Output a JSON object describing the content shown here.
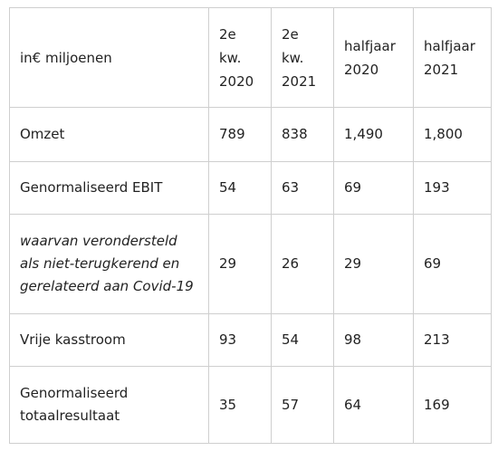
{
  "table": {
    "header": {
      "label": "in€ miljoenen",
      "columns": [
        [
          "2e",
          "kw.",
          "2020"
        ],
        [
          "2e",
          "kw.",
          "2021"
        ],
        [
          "halfjaar",
          "2020"
        ],
        [
          "halfjaar",
          "2021"
        ]
      ]
    },
    "rows": [
      {
        "label_lines": [
          "Omzet"
        ],
        "italic": false,
        "values": [
          "789",
          "838",
          "1,490",
          "1,800"
        ]
      },
      {
        "label_lines": [
          "Genormaliseerd EBIT"
        ],
        "italic": false,
        "values": [
          "54",
          "63",
          "69",
          "193"
        ]
      },
      {
        "label_lines": [
          "waarvan verondersteld",
          "als niet-terugkerend en",
          "gerelateerd aan Covid-19"
        ],
        "italic": true,
        "values": [
          "29",
          "26",
          "29",
          "69"
        ]
      },
      {
        "label_lines": [
          "Vrije kasstroom"
        ],
        "italic": false,
        "values": [
          "93",
          "54",
          "98",
          "213"
        ]
      },
      {
        "label_lines": [
          "Genormaliseerd",
          "totaalresultaat"
        ],
        "italic": false,
        "values": [
          "35",
          "57",
          "64",
          "169"
        ]
      }
    ]
  }
}
